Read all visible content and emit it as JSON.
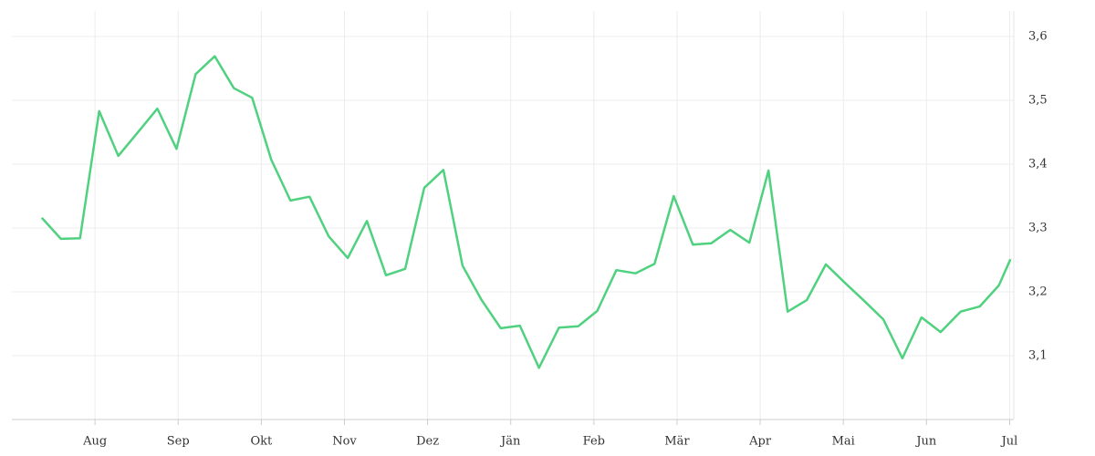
{
  "chart_data": {
    "type": "line",
    "x": [
      0.36,
      0.59,
      0.82,
      1.05,
      1.28,
      1.51,
      1.75,
      1.98,
      2.21,
      2.44,
      2.67,
      2.89,
      3.12,
      3.35,
      3.58,
      3.81,
      4.04,
      4.27,
      4.5,
      4.73,
      4.96,
      5.19,
      5.42,
      5.65,
      5.88,
      6.11,
      6.34,
      6.58,
      6.81,
      7.04,
      7.27,
      7.5,
      7.73,
      7.96,
      8.19,
      8.41,
      8.64,
      8.87,
      9.1,
      9.33,
      9.56,
      9.79,
      10.02,
      10.25,
      10.48,
      10.71,
      10.94,
      11.17,
      11.41,
      11.64,
      11.87,
      12.01
    ],
    "series": [
      {
        "color": "#4fd17f",
        "values": [
          3.316,
          3.283,
          3.284,
          3.483,
          3.413,
          3.449,
          3.487,
          3.424,
          3.541,
          3.569,
          3.519,
          3.504,
          3.407,
          3.343,
          3.349,
          3.287,
          3.253,
          3.311,
          3.226,
          3.236,
          3.363,
          3.391,
          3.241,
          3.187,
          3.143,
          3.147,
          3.081,
          3.144,
          3.146,
          3.17,
          3.234,
          3.229,
          3.244,
          3.35,
          3.274,
          3.276,
          3.297,
          3.277,
          3.39,
          3.169,
          3.187,
          3.243,
          3.214,
          3.186,
          3.157,
          3.096,
          3.16,
          3.137,
          3.169,
          3.177,
          3.21,
          3.251
        ]
      }
    ],
    "xlim": [
      0,
      12.05
    ],
    "xticks": [
      {
        "value": 1,
        "label": "Aug"
      },
      {
        "value": 2,
        "label": "Sep"
      },
      {
        "value": 3,
        "label": "Okt"
      },
      {
        "value": 4,
        "label": "Nov"
      },
      {
        "value": 5,
        "label": "Dez"
      },
      {
        "value": 6,
        "label": "Jän"
      },
      {
        "value": 7,
        "label": "Feb"
      },
      {
        "value": 8,
        "label": "Mär"
      },
      {
        "value": 9,
        "label": "Apr"
      },
      {
        "value": 10,
        "label": "Mai"
      },
      {
        "value": 11,
        "label": "Jun"
      },
      {
        "value": 12,
        "label": "Jul"
      }
    ],
    "ylim": [
      3.0,
      3.64
    ],
    "yticks": [
      {
        "value": 3.1,
        "label": "3,1"
      },
      {
        "value": 3.2,
        "label": "3,2"
      },
      {
        "value": 3.3,
        "label": "3,3"
      },
      {
        "value": 3.4,
        "label": "3,4"
      },
      {
        "value": 3.5,
        "label": "3,5"
      },
      {
        "value": 3.6,
        "label": "3,6"
      }
    ],
    "grid": true
  }
}
